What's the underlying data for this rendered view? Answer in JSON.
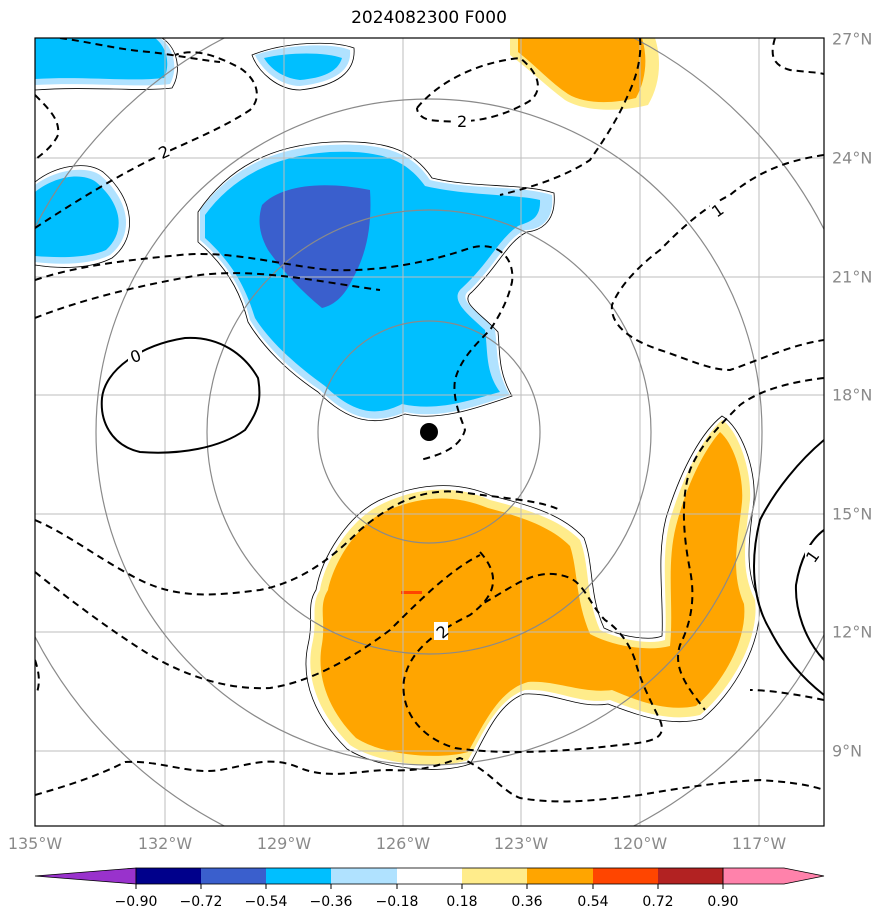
{
  "title": "2024082300 F000",
  "axes": {
    "lon_labels": [
      "135°W",
      "132°W",
      "129°W",
      "126°W",
      "123°W",
      "120°W",
      "117°W"
    ],
    "lat_labels": [
      "27°N",
      "24°N",
      "21°N",
      "18°N",
      "15°N",
      "12°N",
      "9°N"
    ]
  },
  "contour_labels": {
    "zero": "0",
    "two_top": "2",
    "two_left": "2",
    "one_right": "1",
    "two_mid": "2",
    "one_far_right": "1"
  },
  "colorbar": {
    "ticks": [
      "−0.90",
      "−0.72",
      "−0.54",
      "−0.36",
      "−0.18",
      "0.18",
      "0.36",
      "0.54",
      "0.72",
      "0.90"
    ],
    "colors": [
      "#9932cc",
      "#00008b",
      "#3a5fcd",
      "#00bfff",
      "#b0e2ff",
      "#ffffff",
      "#ffec8b",
      "#ffa500",
      "#ff4500",
      "#b22222",
      "#ff82ab"
    ]
  },
  "colors": {
    "positive_fill": "#ffa500",
    "positive_edge": "#ffec8b",
    "negative_fill": "#00bfff",
    "negative_edge": "#b0e2ff",
    "strong_negative": "#3a5fcd",
    "grid": "#bdbdbd",
    "range_rings": "#8a8a8a"
  },
  "storm_center": {
    "lon": "125.8°W",
    "lat": "17.0°N"
  }
}
